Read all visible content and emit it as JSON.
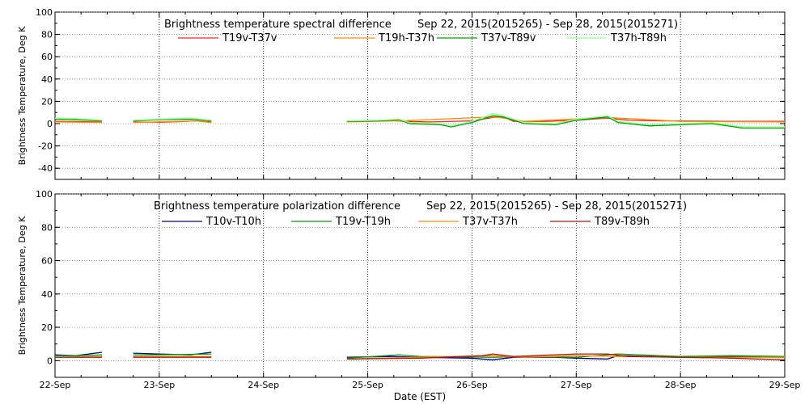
{
  "chart_data": [
    {
      "type": "line",
      "title": "Brightness temperature spectral difference",
      "subtitle": "Sep 22, 2015(2015265) - Sep 28, 2015(2015271)",
      "ylabel": "Brightness Temperature, Deg K",
      "xlabel": "",
      "xlim": [
        "2015-09-22",
        "2015-09-29"
      ],
      "ylim": [
        -50,
        100
      ],
      "yticks": [
        -40,
        -20,
        0,
        20,
        40,
        60,
        80,
        100
      ],
      "grid": true,
      "legend": "top",
      "series": [
        {
          "name": "T19v-T37v",
          "color": "#ff2020",
          "segments": [
            [
              [
                0.0,
                2
              ],
              [
                0.2,
                1.8
              ],
              [
                0.45,
                1.5
              ]
            ],
            [
              [
                0.75,
                1.5
              ],
              [
                1.0,
                1.2
              ],
              [
                1.2,
                1.8
              ],
              [
                1.35,
                2.5
              ],
              [
                1.5,
                1.5
              ]
            ],
            [
              [
                2.8,
                2
              ],
              [
                3.0,
                2.5
              ],
              [
                3.2,
                3
              ],
              [
                3.35,
                2
              ],
              [
                3.6,
                1.5
              ],
              [
                4.0,
                2.5
              ],
              [
                4.2,
                5.5
              ],
              [
                4.3,
                6
              ],
              [
                4.4,
                2
              ],
              [
                4.7,
                2
              ],
              [
                5.0,
                3
              ],
              [
                5.3,
                5
              ],
              [
                5.5,
                3
              ],
              [
                5.8,
                2.5
              ],
              [
                6.0,
                2.5
              ],
              [
                6.5,
                2
              ],
              [
                7.0,
                2
              ]
            ]
          ]
        },
        {
          "name": "T19h-T37h",
          "color": "#ff8c00",
          "segments": [
            [
              [
                0.0,
                1.5
              ],
              [
                0.45,
                1
              ]
            ],
            [
              [
                0.75,
                1
              ],
              [
                1.35,
                2.5
              ],
              [
                1.5,
                1
              ]
            ],
            [
              [
                2.8,
                1.5
              ],
              [
                3.3,
                2.5
              ],
              [
                4.2,
                6
              ],
              [
                4.3,
                5
              ],
              [
                4.5,
                2
              ],
              [
                5.3,
                5.5
              ],
              [
                6.0,
                2
              ],
              [
                7.0,
                1.5
              ]
            ]
          ]
        },
        {
          "name": "T37v-T89v",
          "color": "#00a000",
          "segments": [
            [
              [
                0.0,
                4
              ],
              [
                0.2,
                3.5
              ],
              [
                0.45,
                2.5
              ]
            ],
            [
              [
                0.75,
                2.5
              ],
              [
                1.0,
                3.5
              ],
              [
                1.3,
                4
              ],
              [
                1.5,
                2.5
              ]
            ],
            [
              [
                2.8,
                2
              ],
              [
                3.1,
                2.5
              ],
              [
                3.3,
                3.5
              ],
              [
                3.4,
                0
              ],
              [
                3.7,
                -1
              ],
              [
                3.8,
                -3
              ],
              [
                4.0,
                1
              ],
              [
                4.2,
                7
              ],
              [
                4.3,
                6
              ],
              [
                4.5,
                0
              ],
              [
                4.8,
                -1
              ],
              [
                5.0,
                3
              ],
              [
                5.3,
                6
              ],
              [
                5.4,
                1
              ],
              [
                5.7,
                -2
              ],
              [
                6.0,
                -1
              ],
              [
                6.3,
                0
              ],
              [
                6.6,
                -4
              ],
              [
                7.0,
                -4
              ]
            ]
          ]
        },
        {
          "name": "T37h-T89h",
          "color": "#90ff90",
          "segments": [
            [
              [
                0.0,
                5
              ],
              [
                0.2,
                4.5
              ],
              [
                0.45,
                3
              ]
            ],
            [
              [
                0.75,
                3
              ],
              [
                1.0,
                4
              ],
              [
                1.3,
                5
              ],
              [
                1.5,
                3
              ]
            ],
            [
              [
                2.8,
                2.5
              ],
              [
                3.1,
                3
              ],
              [
                3.3,
                4
              ],
              [
                3.4,
                1
              ],
              [
                3.7,
                0
              ],
              [
                3.8,
                -2
              ],
              [
                4.0,
                2
              ],
              [
                4.2,
                9
              ],
              [
                4.3,
                7
              ],
              [
                4.5,
                1
              ],
              [
                4.8,
                0
              ],
              [
                5.0,
                4
              ],
              [
                5.3,
                7
              ],
              [
                5.4,
                2
              ],
              [
                5.7,
                -1
              ],
              [
                6.0,
                0
              ],
              [
                6.3,
                1
              ],
              [
                6.6,
                -3
              ],
              [
                7.0,
                -3
              ]
            ]
          ]
        }
      ]
    },
    {
      "type": "line",
      "title": "Brightness temperature polarization difference",
      "subtitle": "Sep 22, 2015(2015265) - Sep 28, 2015(2015271)",
      "ylabel": "Brightness Temperature, Deg K",
      "xlabel": "Date (EST)",
      "xlim": [
        "2015-09-22",
        "2015-09-29"
      ],
      "ylim": [
        -10,
        100
      ],
      "yticks": [
        0,
        20,
        40,
        60,
        80,
        100
      ],
      "xticks": [
        "22-Sep",
        "23-Sep",
        "24-Sep",
        "25-Sep",
        "26-Sep",
        "27-Sep",
        "28-Sep",
        "29-Sep"
      ],
      "grid": true,
      "legend": "top",
      "series": [
        {
          "name": "T10v-T10h",
          "color": "#0000a0",
          "segments": [
            [
              [
                0.0,
                3.5
              ],
              [
                0.2,
                3
              ],
              [
                0.45,
                5
              ]
            ],
            [
              [
                0.75,
                4.5
              ],
              [
                1.0,
                4
              ],
              [
                1.3,
                3.5
              ],
              [
                1.5,
                5
              ]
            ],
            [
              [
                2.8,
                2
              ],
              [
                3.2,
                2.5
              ],
              [
                3.5,
                2
              ],
              [
                4.0,
                1.5
              ],
              [
                4.2,
                0.5
              ],
              [
                4.4,
                2
              ],
              [
                4.8,
                2
              ],
              [
                5.0,
                1.5
              ],
              [
                5.3,
                1
              ],
              [
                5.4,
                3
              ],
              [
                6.0,
                2
              ],
              [
                6.5,
                2.5
              ],
              [
                7.0,
                2
              ]
            ]
          ]
        },
        {
          "name": "T19v-T19h",
          "color": "#00a000",
          "segments": [
            [
              [
                0.0,
                3
              ],
              [
                0.2,
                3
              ],
              [
                0.45,
                3.5
              ]
            ],
            [
              [
                0.75,
                3.5
              ],
              [
                1.0,
                3.5
              ],
              [
                1.5,
                4
              ]
            ],
            [
              [
                2.8,
                1.5
              ],
              [
                3.3,
                3.5
              ],
              [
                3.5,
                2.5
              ],
              [
                4.2,
                2
              ],
              [
                4.5,
                2.5
              ],
              [
                5.0,
                2
              ],
              [
                5.4,
                4
              ],
              [
                6.0,
                2.5
              ],
              [
                6.5,
                3
              ],
              [
                7.0,
                2.5
              ]
            ]
          ]
        },
        {
          "name": "T37v-T37h",
          "color": "#ff8c00",
          "segments": [
            [
              [
                0.0,
                2
              ],
              [
                0.45,
                2.5
              ]
            ],
            [
              [
                0.75,
                2.5
              ],
              [
                1.5,
                2.5
              ]
            ],
            [
              [
                2.8,
                1
              ],
              [
                3.5,
                2
              ],
              [
                4.2,
                3
              ],
              [
                4.5,
                2
              ],
              [
                5.0,
                3
              ],
              [
                5.4,
                2.5
              ],
              [
                6.0,
                2
              ],
              [
                7.0,
                2
              ]
            ]
          ]
        },
        {
          "name": "T89v-T89h",
          "color": "#c01010",
          "segments": [
            [
              [
                0.0,
                2
              ],
              [
                0.45,
                2
              ]
            ],
            [
              [
                0.75,
                2
              ],
              [
                1.5,
                2
              ]
            ],
            [
              [
                2.8,
                1
              ],
              [
                3.5,
                1.5
              ],
              [
                4.1,
                3
              ],
              [
                4.2,
                4
              ],
              [
                4.4,
                2.5
              ],
              [
                5.0,
                4
              ],
              [
                5.3,
                4
              ],
              [
                5.5,
                2.5
              ],
              [
                6.0,
                2
              ],
              [
                6.5,
                1.5
              ],
              [
                7.0,
                0.5
              ]
            ]
          ]
        }
      ]
    }
  ]
}
